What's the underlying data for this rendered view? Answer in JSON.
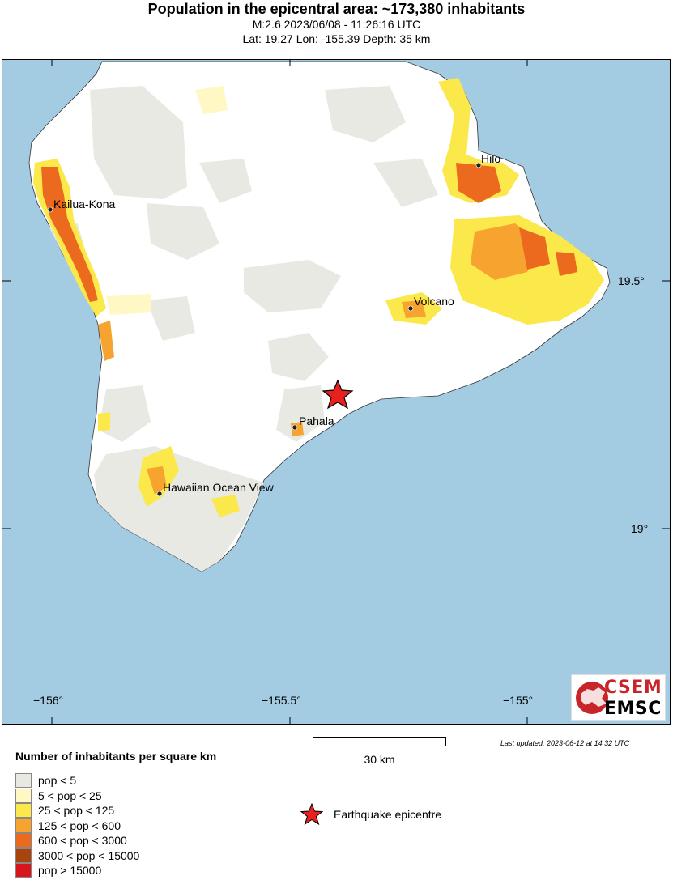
{
  "header": {
    "title": "Population in the epicentral area: ~173,380 inhabitants",
    "line1": "M:2.6 2023/06/08 - 11:26:16 UTC",
    "line2": "Lat: 19.27 Lon: -155.39 Depth: 35 km"
  },
  "map": {
    "colors": {
      "ocean": "#a3cce3",
      "land": "#ffffff",
      "grid": "#000000"
    },
    "lon_ticks": [
      "−156°",
      "−155.5°",
      "−155°"
    ],
    "lat_ticks": [
      "19.5°",
      "19°"
    ],
    "places": {
      "kailua_kona": "Kailua-Kona",
      "hilo": "Hilo",
      "volcano": "Volcano",
      "pahala": "Pahala",
      "ocean_view": "Hawaiian Ocean View"
    },
    "epicenter": {
      "lat": 19.27,
      "lon": -155.39,
      "marker_color": "#e8201e"
    }
  },
  "footer": {
    "last_updated": "Last updated: 2023-06-12 at 14:32 UTC",
    "scale_label": "30 km",
    "logo_top": "CSEM",
    "logo_bottom": "EMSC"
  },
  "legend": {
    "title": "Number of inhabitants per square km",
    "items": [
      {
        "label": "pop < 5",
        "color": "#e9e9e3"
      },
      {
        "label": "5 < pop < 25",
        "color": "#fff8c4"
      },
      {
        "label": "25 < pop < 125",
        "color": "#fbe84a"
      },
      {
        "label": "125 < pop < 600",
        "color": "#f7a330"
      },
      {
        "label": "600 < pop < 3000",
        "color": "#ec6a1d"
      },
      {
        "label": "3000 < pop < 15000",
        "color": "#a8450f"
      },
      {
        "label": "pop > 15000",
        "color": "#d9141a"
      }
    ],
    "epicentre_label": "Earthquake epicentre"
  }
}
